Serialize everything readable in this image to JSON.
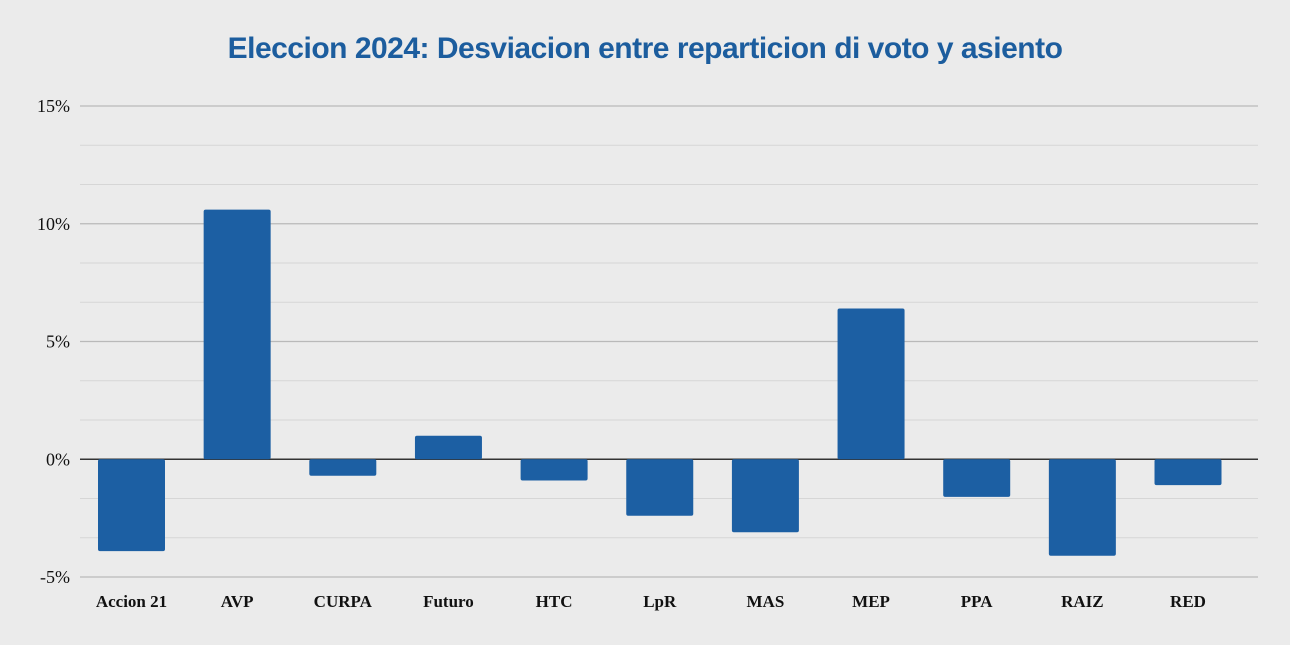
{
  "chart_data": {
    "type": "bar",
    "title": "Eleccion 2024: Desviacion entre reparticion di voto y asiento",
    "xlabel": "",
    "ylabel": "",
    "categories": [
      "Accion 21",
      "AVP",
      "CURPA",
      "Futuro",
      "HTC",
      "LpR",
      "MAS",
      "MEP",
      "PPA",
      "RAIZ",
      "RED"
    ],
    "values": [
      -3.9,
      10.6,
      -0.7,
      1.0,
      -0.9,
      -2.4,
      -3.1,
      6.4,
      -1.6,
      -4.1,
      -1.1
    ],
    "ylim": [
      -5,
      15
    ],
    "yticks": [
      -5,
      0,
      5,
      10,
      15
    ],
    "ytick_labels": [
      "-5%",
      "0%",
      "5%",
      "10%",
      "15%"
    ],
    "grid": true,
    "legend": "none",
    "colors": {
      "bar": "#1c5fa3",
      "title": "#1c5d9e",
      "background": "#ebebeb"
    }
  }
}
